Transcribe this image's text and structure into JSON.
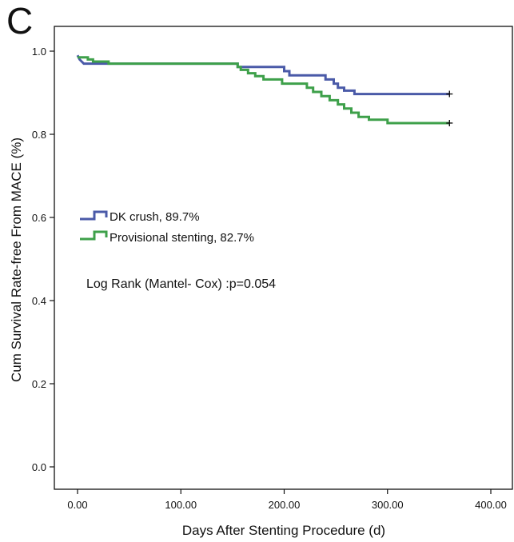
{
  "panel_label": "C",
  "colors": {
    "dk_crush": "#4a5aa8",
    "provisional": "#3ea04a",
    "axis": "#111111"
  },
  "chart_data": {
    "type": "line",
    "step": true,
    "xlabel": "Days After Stenting Procedure (d)",
    "ylabel": "Cum Survival Rate-free From MACE (%)",
    "xlim": [
      0,
      400
    ],
    "ylim": [
      0,
      1
    ],
    "xticks": [
      0,
      100,
      200,
      300,
      400
    ],
    "xtick_labels": [
      "0.00",
      "100.00",
      "200.00",
      "300.00",
      "400.00"
    ],
    "yticks": [
      0,
      0.2,
      0.4,
      0.6,
      0.8,
      1.0
    ],
    "ytick_labels": [
      "0.0",
      "0.2",
      "0.4",
      "0.6",
      "0.8",
      "1.0"
    ],
    "grid": false,
    "legend_position": "center-left",
    "series": [
      {
        "name": "DK crush, 89.7%",
        "color": "#4a5aa8",
        "censor_mark": {
          "x": 360,
          "y": 0.897
        },
        "points": [
          [
            0,
            0.99
          ],
          [
            2,
            0.98
          ],
          [
            4,
            0.975
          ],
          [
            6,
            0.97
          ],
          [
            155,
            0.97
          ],
          [
            155,
            0.962
          ],
          [
            200,
            0.962
          ],
          [
            200,
            0.952
          ],
          [
            205,
            0.952
          ],
          [
            205,
            0.942
          ],
          [
            240,
            0.942
          ],
          [
            240,
            0.932
          ],
          [
            248,
            0.932
          ],
          [
            248,
            0.922
          ],
          [
            252,
            0.922
          ],
          [
            252,
            0.912
          ],
          [
            258,
            0.912
          ],
          [
            258,
            0.905
          ],
          [
            268,
            0.905
          ],
          [
            268,
            0.897
          ],
          [
            360,
            0.897
          ]
        ]
      },
      {
        "name": "Provisional stenting, 82.7%",
        "color": "#3ea04a",
        "censor_mark": {
          "x": 360,
          "y": 0.827
        },
        "points": [
          [
            0,
            0.985
          ],
          [
            10,
            0.985
          ],
          [
            10,
            0.98
          ],
          [
            15,
            0.98
          ],
          [
            15,
            0.975
          ],
          [
            30,
            0.975
          ],
          [
            30,
            0.97
          ],
          [
            155,
            0.97
          ],
          [
            155,
            0.962
          ],
          [
            158,
            0.962
          ],
          [
            158,
            0.955
          ],
          [
            165,
            0.955
          ],
          [
            165,
            0.947
          ],
          [
            172,
            0.947
          ],
          [
            172,
            0.94
          ],
          [
            180,
            0.94
          ],
          [
            180,
            0.932
          ],
          [
            198,
            0.932
          ],
          [
            198,
            0.922
          ],
          [
            222,
            0.922
          ],
          [
            222,
            0.912
          ],
          [
            228,
            0.912
          ],
          [
            228,
            0.902
          ],
          [
            236,
            0.902
          ],
          [
            236,
            0.892
          ],
          [
            244,
            0.892
          ],
          [
            244,
            0.882
          ],
          [
            252,
            0.882
          ],
          [
            252,
            0.872
          ],
          [
            258,
            0.872
          ],
          [
            258,
            0.862
          ],
          [
            265,
            0.862
          ],
          [
            265,
            0.852
          ],
          [
            272,
            0.852
          ],
          [
            272,
            0.842
          ],
          [
            282,
            0.842
          ],
          [
            282,
            0.835
          ],
          [
            300,
            0.835
          ],
          [
            300,
            0.827
          ],
          [
            360,
            0.827
          ]
        ]
      }
    ],
    "annotations": [
      "Log Rank (Mantel- Cox) :p=0.054"
    ]
  }
}
